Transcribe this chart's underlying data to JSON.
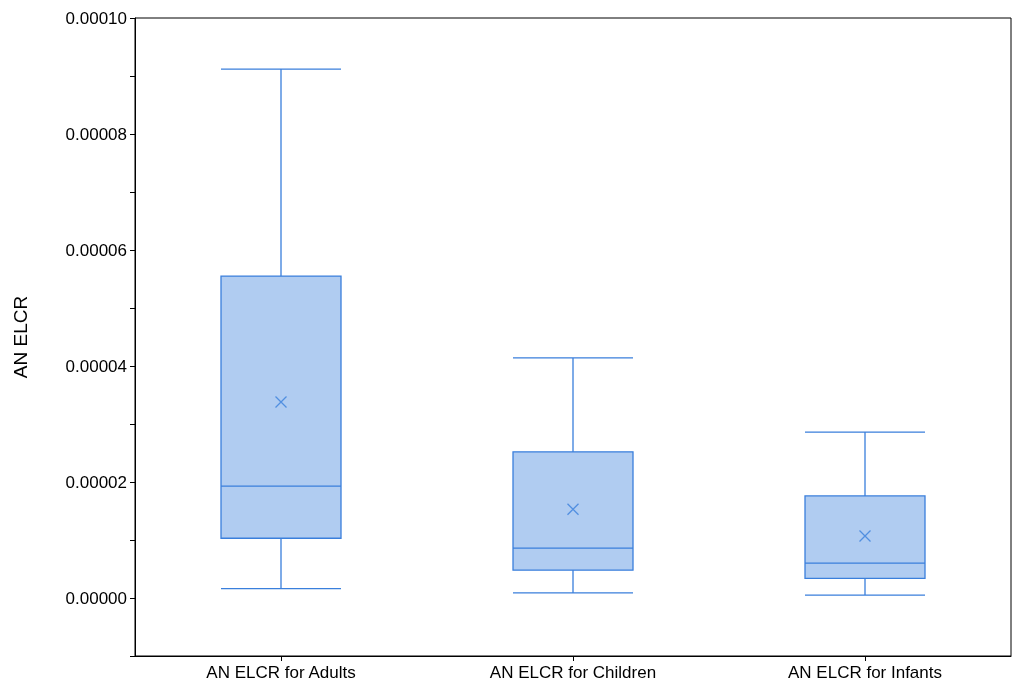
{
  "chart_data": {
    "type": "box",
    "ylabel": "AN ELCR",
    "categories": [
      "AN ELCR for Adults",
      "AN ELCR for Children",
      "AN ELCR for Infants"
    ],
    "color": "#3a7fdc",
    "boxes": [
      {
        "low": 1.6e-06,
        "q1": 1.03e-05,
        "median": 1.93e-05,
        "q3": 5.55e-05,
        "high": 9.12e-05,
        "mean": 3.38e-05
      },
      {
        "low": 9e-07,
        "q1": 4.8e-06,
        "median": 8.6e-06,
        "q3": 2.52e-05,
        "high": 4.14e-05,
        "mean": 1.53e-05
      },
      {
        "low": 5e-07,
        "q1": 3.4e-06,
        "median": 6e-06,
        "q3": 1.76e-05,
        "high": 2.86e-05,
        "mean": 1.07e-05
      }
    ],
    "ylim": [
      -1e-05,
      0.0001
    ],
    "yticks": [
      {
        "value": -1e-05,
        "label": null
      },
      {
        "value": 0,
        "label": "0.00000"
      },
      {
        "value": 1e-05,
        "label": null
      },
      {
        "value": 2e-05,
        "label": "0.00002"
      },
      {
        "value": 3e-05,
        "label": null
      },
      {
        "value": 4e-05,
        "label": "0.00004"
      },
      {
        "value": 5e-05,
        "label": null
      },
      {
        "value": 6e-05,
        "label": "0.00006"
      },
      {
        "value": 7e-05,
        "label": null
      },
      {
        "value": 8e-05,
        "label": "0.00008"
      },
      {
        "value": 9e-05,
        "label": null
      },
      {
        "value": 0.0001,
        "label": "0.00010"
      }
    ],
    "grid": false
  }
}
